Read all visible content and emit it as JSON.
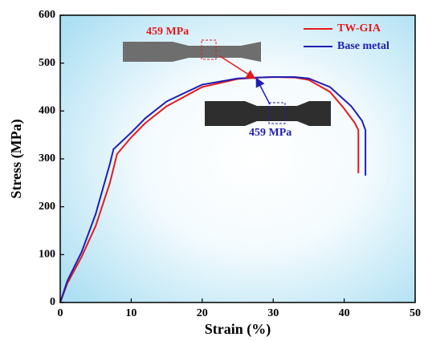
{
  "chart_data": {
    "type": "line",
    "x_label": "Strain (%)",
    "y_label": "Stress (MPa)",
    "xlim": [
      0,
      50
    ],
    "xticks": [
      0,
      10,
      20,
      30,
      40,
      50
    ],
    "ylim": [
      0,
      600
    ],
    "yticks": [
      0,
      100,
      200,
      300,
      400,
      500,
      600
    ],
    "legend": "upper right",
    "annotations": [
      "459 MPa",
      "459 MPa"
    ],
    "series": [
      {
        "name": "TW-GIA",
        "color": "#e41a1c",
        "x": [
          0,
          1,
          3,
          5,
          7,
          8,
          10,
          12,
          15,
          20,
          25,
          28,
          30,
          33,
          35,
          38,
          40,
          41.5,
          42,
          42
        ],
        "values": [
          0,
          40,
          95,
          160,
          250,
          310,
          345,
          375,
          410,
          450,
          467,
          470,
          471,
          470,
          465,
          440,
          405,
          375,
          360,
          270
        ]
      },
      {
        "name": "Base metal",
        "color": "#1f1fb4",
        "x": [
          0,
          1,
          3,
          5,
          7,
          7.5,
          10,
          12,
          15,
          20,
          25,
          28,
          30,
          33,
          35,
          38,
          41,
          42.5,
          43,
          43
        ],
        "values": [
          0,
          45,
          105,
          185,
          290,
          320,
          355,
          385,
          420,
          455,
          468,
          470,
          471,
          471,
          468,
          450,
          410,
          380,
          360,
          265
        ]
      }
    ]
  }
}
